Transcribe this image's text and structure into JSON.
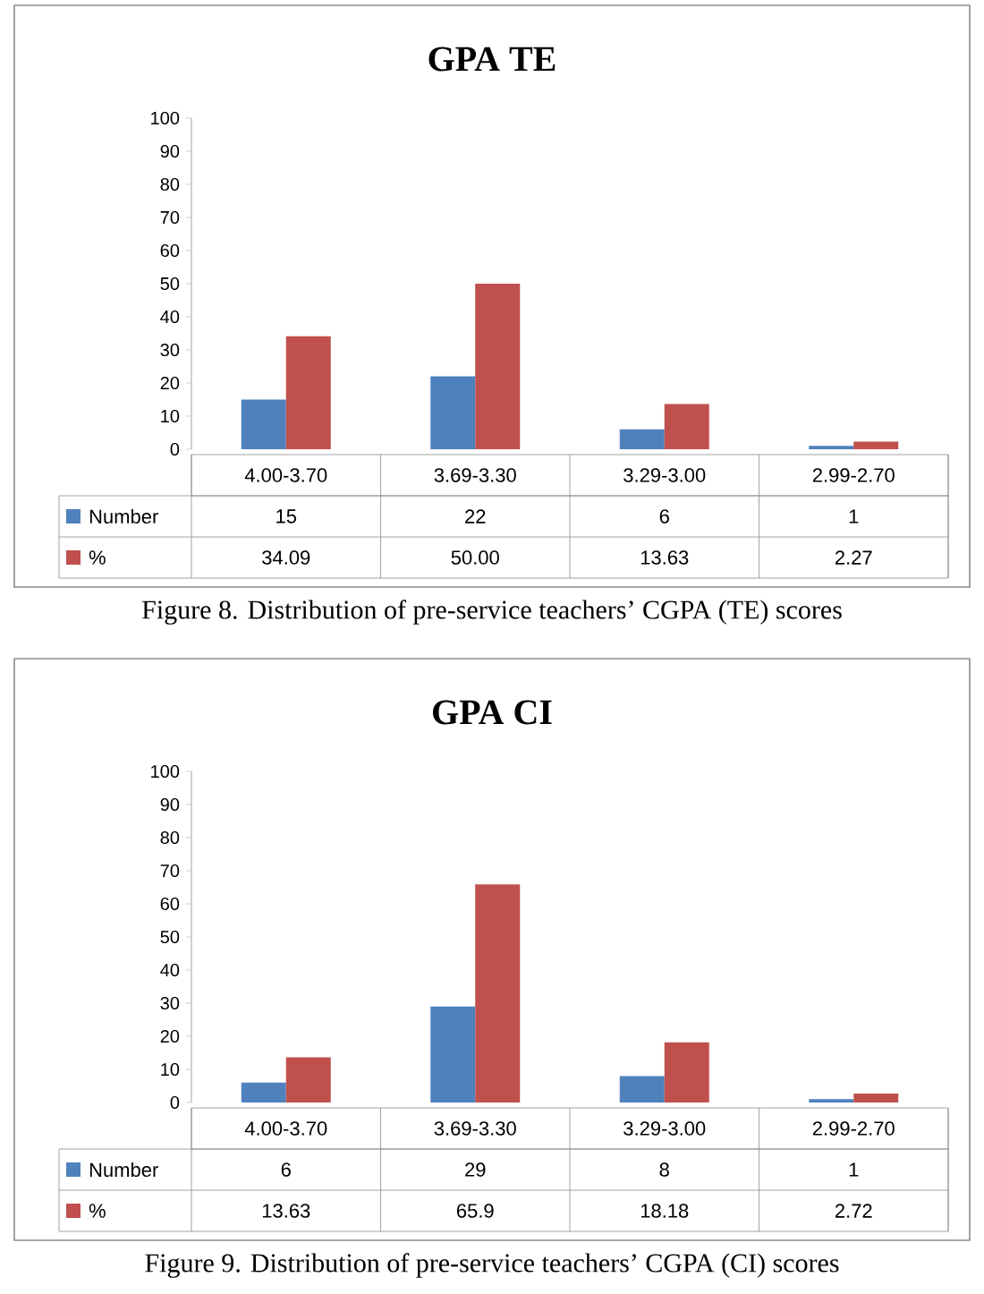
{
  "chart_data": [
    {
      "type": "bar",
      "title": "GPA TE",
      "categories": [
        "4.00-3.70",
        "3.69-3.30",
        "3.29-3.00",
        "2.99-2.70"
      ],
      "ylim": [
        0,
        100
      ],
      "yticks": [
        0,
        10,
        20,
        30,
        40,
        50,
        60,
        70,
        80,
        90,
        100
      ],
      "legend": "bottom",
      "series": [
        {
          "name": "Number",
          "color": "#4f81bd",
          "values": [
            15,
            22,
            6,
            1
          ],
          "value_labels": [
            "15",
            "22",
            "6",
            "1"
          ]
        },
        {
          "name": "%",
          "color": "#c0504d",
          "values": [
            34.09,
            50.0,
            13.63,
            2.27
          ],
          "value_labels": [
            "34.09",
            "50.00",
            "13.63",
            "2.27"
          ]
        }
      ],
      "annotations": [
        "Figure 8. Distribution of pre-service teachers’ CGPA (TE) scores"
      ]
    },
    {
      "type": "bar",
      "title": "GPA CI",
      "categories": [
        "4.00-3.70",
        "3.69-3.30",
        "3.29-3.00",
        "2.99-2.70"
      ],
      "ylim": [
        0,
        100
      ],
      "yticks": [
        0,
        10,
        20,
        30,
        40,
        50,
        60,
        70,
        80,
        90,
        100
      ],
      "legend": "bottom",
      "series": [
        {
          "name": "Number",
          "color": "#4f81bd",
          "values": [
            6,
            29,
            8,
            1
          ],
          "value_labels": [
            "6",
            "29",
            "8",
            "1"
          ]
        },
        {
          "name": "%",
          "color": "#c0504d",
          "values": [
            13.63,
            65.9,
            18.18,
            2.72
          ],
          "value_labels": [
            "13.63",
            "65.9",
            "18.18",
            "2.72"
          ]
        }
      ],
      "annotations": [
        "Figure 9. Distribution of pre-service teachers’ CGPA (CI) scores"
      ]
    }
  ]
}
